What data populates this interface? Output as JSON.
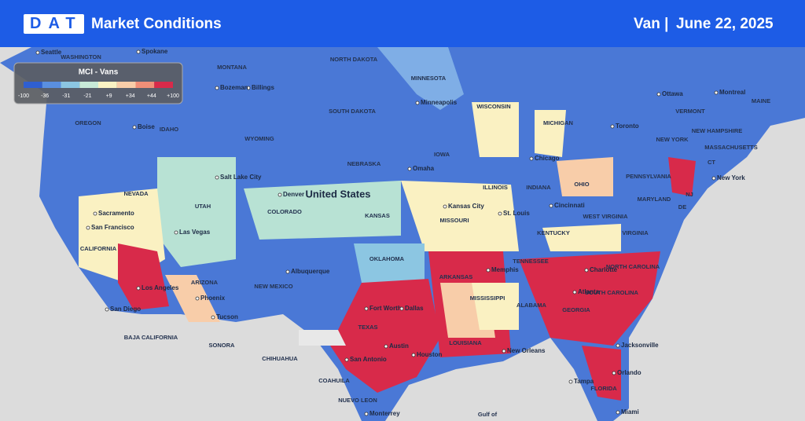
{
  "header": {
    "logo": "DAT",
    "title": "Market Conditions",
    "equipment": "Van |",
    "date": "June 22, 2025"
  },
  "legend": {
    "title": "MCI - Vans",
    "labels": [
      "-100",
      "-36",
      "-31",
      "-21",
      "+9",
      "+34",
      "+44",
      "+100"
    ],
    "colors": [
      "#2f5fd0",
      "#5a8fe0",
      "#8cc6e2",
      "#c8ead8",
      "#faf3c4",
      "#f8cda9",
      "#f08f78",
      "#d82a4a"
    ]
  },
  "map": {
    "country": "United States",
    "cities": [
      "Seattle",
      "Spokane",
      "Minneapolis",
      "Ottawa",
      "Montreal",
      "Toronto",
      "Chicago",
      "Salt Lake City",
      "Denver",
      "Omaha",
      "Kansas City",
      "St. Louis",
      "Cincinnati",
      "New York",
      "Sacramento",
      "San Francisco",
      "Las Vegas",
      "Los Angeles",
      "Phoenix",
      "Tucson",
      "San Diego",
      "Albuquerque",
      "Fort Worth",
      "Dallas",
      "Memphis",
      "Charlotte",
      "Atlanta",
      "Austin",
      "Houston",
      "San Antonio",
      "New Orleans",
      "Jacksonville",
      "Orlando",
      "Tampa",
      "Miami",
      "Monterrey",
      "Boise",
      "Billings",
      "Bozeman"
    ],
    "regions": [
      "WASHINGTON",
      "MONTANA",
      "NORTH DAKOTA",
      "MINNESOTA",
      "WISCONSIN",
      "MICHIGAN",
      "OREGON",
      "IDAHO",
      "WYOMING",
      "SOUTH DAKOTA",
      "IOWA",
      "NEBRASKA",
      "ILLINOIS",
      "INDIANA",
      "OHIO",
      "PENNSYLVANIA",
      "NEVADA",
      "UTAH",
      "COLORADO",
      "KANSAS",
      "MISSOURI",
      "WEST VIRGINIA",
      "MARYLAND",
      "VIRGINIA",
      "KENTUCKY",
      "CALIFORNIA",
      "ARIZONA",
      "NEW MEXICO",
      "OKLAHOMA",
      "TENNESSEE",
      "ARKANSAS",
      "NORTH CAROLINA",
      "SOUTH CAROLINA",
      "MISSISSIPPI",
      "ALABAMA",
      "GEORGIA",
      "TEXAS",
      "LOUISIANA",
      "FLORIDA",
      "VERMONT",
      "NEW HAMPSHIRE",
      "MAINE",
      "NEW YORK",
      "MASSACHUSETTS",
      "CT",
      "NJ",
      "DE",
      "SONORA",
      "CHIHUAHUA",
      "COAHUILA",
      "NUEVO LEON",
      "BAJA CALIFORNIA",
      "Gulf of"
    ]
  }
}
